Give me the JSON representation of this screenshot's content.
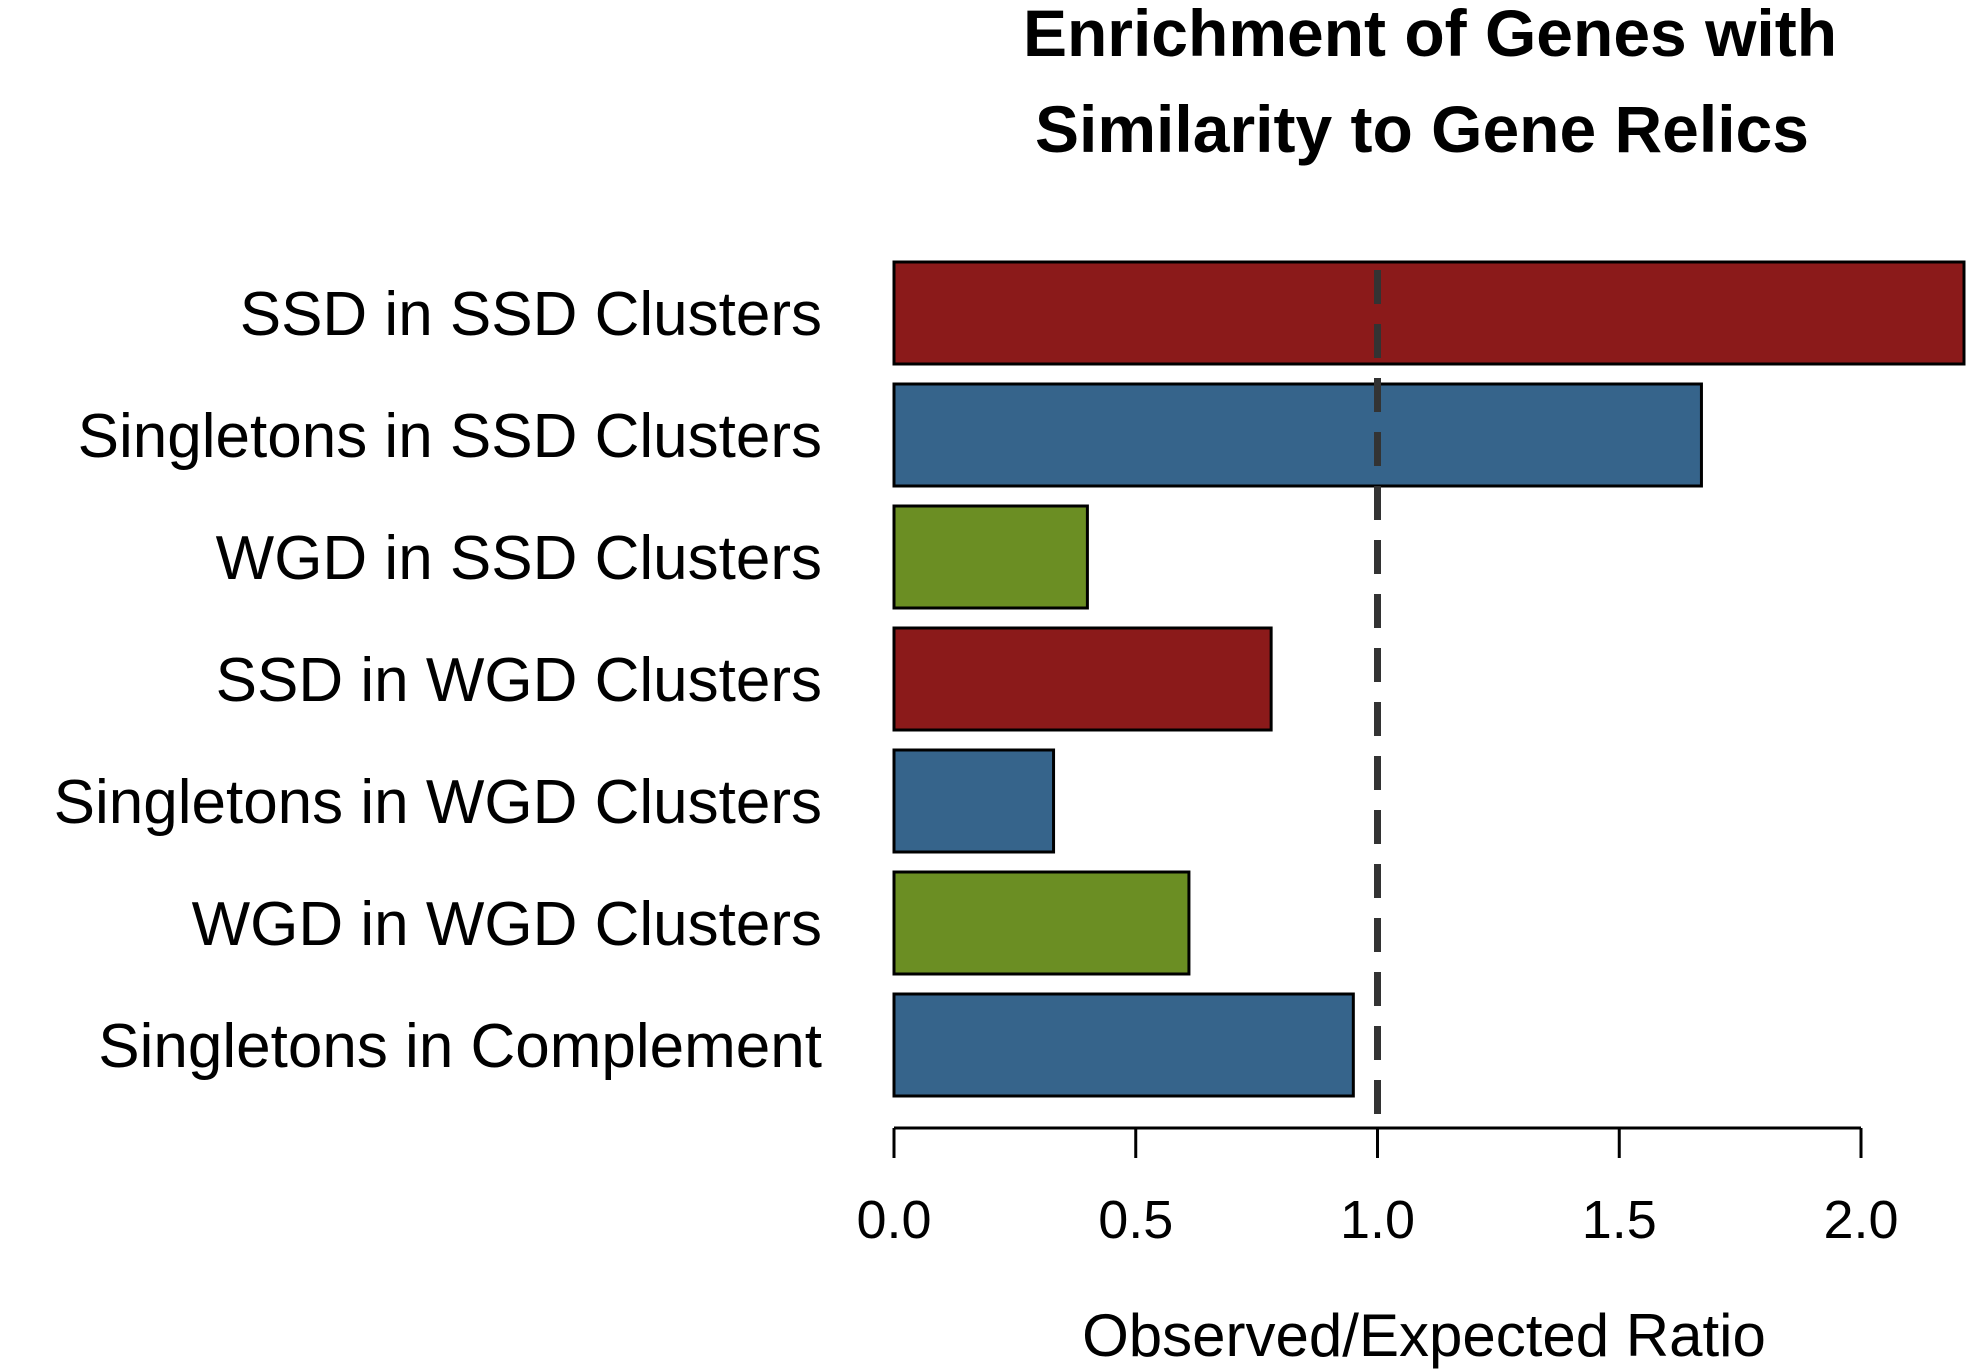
{
  "chart_data": {
    "type": "bar",
    "orientation": "horizontal",
    "title_lines": [
      "Enrichment of Genes with",
      "Similarity to Gene Relics"
    ],
    "xlabel": "Observed/Expected Ratio",
    "ylabel": "",
    "categories": [
      "SSD in SSD Clusters",
      "Singletons in SSD Clusters",
      "WGD in SSD Clusters",
      "SSD in WGD Clusters",
      "Singletons in WGD Clusters",
      "WGD in WGD Clusters",
      "Singletons in Complement"
    ],
    "values": [
      2.22,
      1.67,
      0.4,
      0.78,
      0.33,
      0.61,
      0.95
    ],
    "bar_colors": [
      "#8b1a1a",
      "#36648b",
      "#6b8e23",
      "#8b1a1a",
      "#36648b",
      "#6b8e23",
      "#36648b"
    ],
    "xlim": [
      0,
      2.22
    ],
    "xticks": [
      0.0,
      0.5,
      1.0,
      1.5,
      2.0
    ],
    "xtick_labels": [
      "0.0",
      "0.5",
      "1.0",
      "1.5",
      "2.0"
    ],
    "reference_line": 1.0,
    "grid": false,
    "legend": "none"
  }
}
